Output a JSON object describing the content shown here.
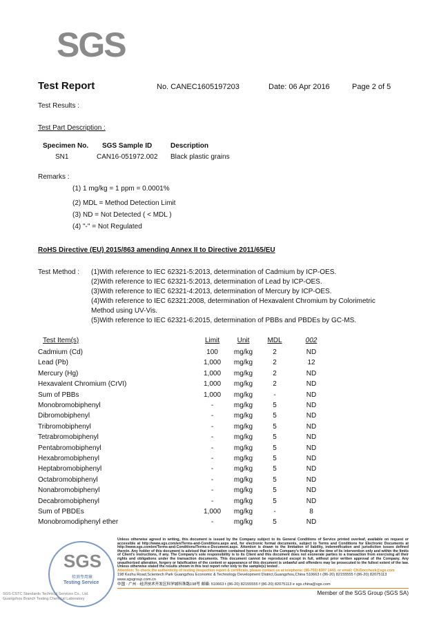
{
  "logo": "SGS",
  "header": {
    "title": "Test Report",
    "report_no": "No. CANEC1605197203",
    "date": "Date: 06 Apr 2016",
    "page": "Page 2 of 5"
  },
  "test_results_label": "Test Results :",
  "test_part_label": "Test Part Description :",
  "specimen": {
    "headers": [
      "Specimen No.",
      "SGS Sample ID",
      "Description"
    ],
    "row": [
      "SN1",
      "CAN16-051972.002",
      "Black plastic grains"
    ]
  },
  "remarks": {
    "label": "Remarks :",
    "items": [
      "(1) 1 mg/kg = 1 ppm = 0.0001%",
      "(2) MDL = Method Detection Limit",
      "(3) ND = Not Detected ( < MDL )",
      "(4) \"-\" = Not Regulated"
    ]
  },
  "directive": "RoHS Directive (EU) 2015/863 amending Annex II to Directive 2011/65/EU",
  "method": {
    "label": "Test Method :",
    "lines": [
      "(1)With reference to IEC 62321-5:2013, determination of Cadmium by ICP-OES.",
      "(2)With reference to IEC 62321-5:2013, determination of Lead by ICP-OES.",
      "(3)With reference to IEC 62321-4:2013, determination of Mercury by ICP-OES.",
      "(4)With reference to IEC 62321:2008, determination of Hexavalent Chromium by Colorimetric",
      "Method using UV-Vis.",
      "(5)With reference to IEC 62321-6:2015, determination of PBBs and PBDEs by GC-MS."
    ]
  },
  "table": {
    "headers": [
      "Test Item(s)",
      "Limit",
      "Unit",
      "MDL",
      "002"
    ],
    "rows": [
      [
        "Cadmium (Cd)",
        "100",
        "mg/kg",
        "2",
        "ND"
      ],
      [
        "Lead (Pb)",
        "1,000",
        "mg/kg",
        "2",
        "12"
      ],
      [
        "Mercury (Hg)",
        "1,000",
        "mg/kg",
        "2",
        "ND"
      ],
      [
        "Hexavalent Chromium (CrVI)",
        "1,000",
        "mg/kg",
        "2",
        "ND"
      ],
      [
        "Sum of PBBs",
        "1,000",
        "mg/kg",
        "-",
        "ND"
      ],
      [
        "Monobromobiphenyl",
        "-",
        "mg/kg",
        "5",
        "ND"
      ],
      [
        "Dibromobiphenyl",
        "-",
        "mg/kg",
        "5",
        "ND"
      ],
      [
        "Tribromobiphenyl",
        "-",
        "mg/kg",
        "5",
        "ND"
      ],
      [
        "Tetrabromobiphenyl",
        "-",
        "mg/kg",
        "5",
        "ND"
      ],
      [
        "Pentabromobiphenyl",
        "-",
        "mg/kg",
        "5",
        "ND"
      ],
      [
        "Hexabromobiphenyl",
        "-",
        "mg/kg",
        "5",
        "ND"
      ],
      [
        "Heptabromobiphenyl",
        "-",
        "mg/kg",
        "5",
        "ND"
      ],
      [
        "Octabromobiphenyl",
        "-",
        "mg/kg",
        "5",
        "ND"
      ],
      [
        "Nonabromobiphenyl",
        "-",
        "mg/kg",
        "5",
        "ND"
      ],
      [
        "Decabromobiphenyl",
        "-",
        "mg/kg",
        "5",
        "ND"
      ],
      [
        "Sum of PBDEs",
        "1,000",
        "mg/kg",
        "-",
        "8"
      ],
      [
        "Monobromodiphenyl ether",
        "-",
        "mg/kg",
        "5",
        "ND"
      ]
    ]
  },
  "footer": {
    "stamp_text": "SGS",
    "stamp_sub": "Testing Service",
    "stamp_cn": "检测专用章",
    "lab_name_1": "SGS-CSTC Standards Technical Services Co., Ltd.",
    "lab_name_2": "Guangzhou Branch Testing Chemical Laboratory",
    "legal": "Unless otherwise agreed in writing, this document is issued by the Company subject to its General Conditions of Service printed overleaf, available on request or accessible at http://www.sgs.com/en/Terms-and-Conditions.aspx and, for electronic format documents, subject to Terms and Conditions for Electronic Documents at http://www.sgs.com/en/Terms-and-Conditions/Terms-e-Document.aspx. Attention is drawn to the limitation of liability, indemnification and jurisdiction issues defined therein. Any holder of this document is advised that information contained hereon reflects the Company's findings at the time of its intervention only and within the limits of Client's instructions, if any. The Company's sole responsibility is to its Client and this document does not exonerate parties to a transaction from exercising all their rights and obligations under the transaction documents. This document cannot be reproduced except in full, without prior written approval of the Company. Any unauthorized alteration, forgery or falsification of the content or appearance of this document is unlawful and offenders may be prosecuted to the fullest extent of the law. Unless otherwise stated the results shown in this test report refer only to the sample(s) tested .",
    "attention": "Attention: To check the authenticity of testing /inspection report & certificate, please contact us at telephone: (86-755) 8307 1443, or email: CN.Doccheck@sgs.com",
    "addr_en": "198 Kezhu Road,Scientech Park Guangzhou Economic & Technology Development District,Guangzhou,China  510663   t (86-20) 82155555   f (86-20) 82075113   www.sgsgroup.com.cn",
    "addr_cn": "中国 · 广州 · 经济技术开发区科学城科珠路198号        邮编: 510663   t (86-20) 82155555   f (86-20) 82075113   e sgs.china@sgs.com",
    "member": "Member of the SGS Group (SGS SA)",
    "accent_color": "#e08a1e"
  }
}
